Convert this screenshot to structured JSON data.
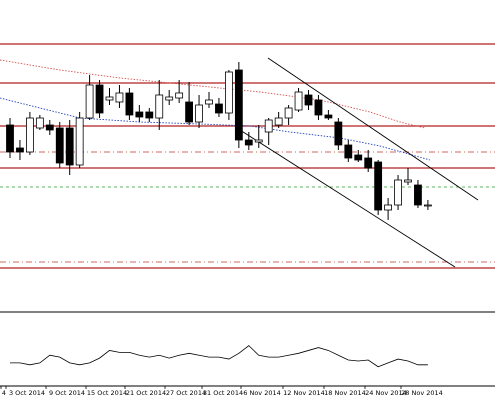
{
  "chart_data": {
    "type": "candlestick",
    "x_labels": [
      "4",
      "3 Oct 2014",
      "9 Oct 2014",
      "15 Oct 2014",
      "21 Oct 2014",
      "27 Oct 2014",
      "31 Oct 2014",
      "6 Nov 2014",
      "12 Nov 2014",
      "18 Nov 2014",
      "24 Nov 2014",
      "28 Nov 2014"
    ],
    "open": [
      185,
      162,
      158,
      182,
      185,
      182,
      182,
      145,
      192,
      225,
      210,
      208,
      217,
      198,
      198,
      192,
      210,
      212,
      208,
      188,
      206,
      206,
      197,
      240,
      170,
      168,
      178,
      185,
      192,
      200,
      215,
      210,
      195,
      188,
      165,
      155,
      152,
      148,
      100,
      105,
      128,
      125,
      105
    ],
    "high": [
      192,
      170,
      198,
      195,
      190,
      188,
      190,
      198,
      235,
      230,
      222,
      225,
      222,
      205,
      202,
      230,
      220,
      230,
      228,
      215,
      218,
      212,
      240,
      248,
      178,
      185,
      192,
      198,
      205,
      222,
      220,
      215,
      200,
      192,
      170,
      160,
      160,
      150,
      112,
      135,
      142,
      130,
      110
    ],
    "low": [
      152,
      150,
      155,
      180,
      175,
      142,
      135,
      142,
      190,
      192,
      205,
      202,
      190,
      188,
      188,
      180,
      205,
      207,
      185,
      182,
      202,
      193,
      190,
      162,
      160,
      162,
      165,
      182,
      185,
      198,
      200,
      190,
      190,
      160,
      148,
      148,
      138,
      95,
      90,
      100,
      125,
      102,
      100
    ],
    "close": [
      158,
      158,
      192,
      192,
      180,
      147,
      145,
      192,
      225,
      197,
      213,
      217,
      195,
      193,
      192,
      215,
      213,
      217,
      188,
      205,
      210,
      197,
      238,
      170,
      165,
      170,
      190,
      192,
      202,
      218,
      205,
      195,
      192,
      165,
      152,
      150,
      142,
      100,
      105,
      130,
      130,
      105,
      105
    ],
    "ylim": [
      0,
      310
    ],
    "up_color": "#ffffff",
    "down_color": "#000000",
    "indicator": [
      22,
      22,
      20,
      22,
      30,
      28,
      22,
      20,
      22,
      27,
      35,
      33,
      33,
      30,
      28,
      30,
      27,
      30,
      32,
      30,
      28,
      28,
      26,
      32,
      40,
      30,
      28,
      28,
      30,
      32,
      35,
      38,
      35,
      30,
      25,
      24,
      25,
      18,
      22,
      26,
      24,
      20,
      20
    ],
    "indicator_ylim": [
      0,
      73
    ]
  }
}
